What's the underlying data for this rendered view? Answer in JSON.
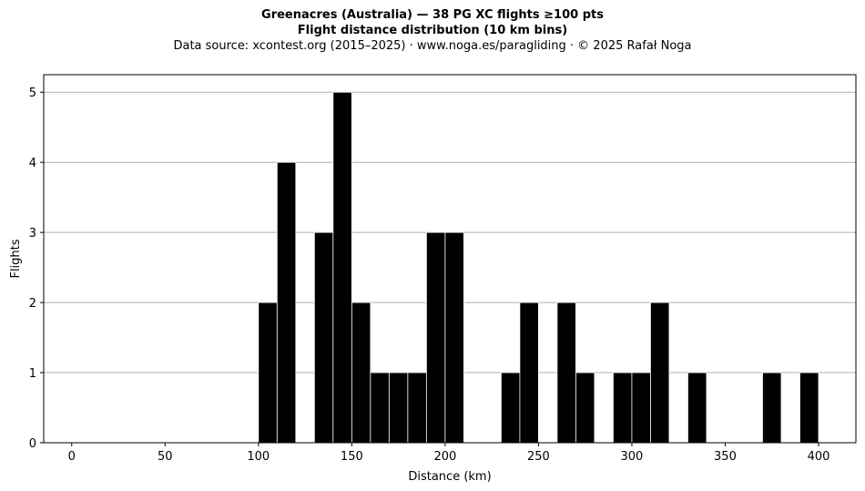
{
  "header": {
    "title": "Greenacres (Australia)  —  38 PG XC flights ≥100 pts",
    "subtitle": "Flight distance distribution (10 km bins)",
    "source": "Data source: xcontest.org (2015–2025)  ·  www.noga.es/paragliding  ·  © 2025 Rafał Noga"
  },
  "chart_data": {
    "type": "bar",
    "title": "Greenacres (Australia)  —  38 PG XC flights ≥100 pts",
    "subtitle": "Flight distance distribution (10 km bins)",
    "xlabel": "Distance (km)",
    "ylabel": "Flights",
    "xlim": [
      -15,
      420
    ],
    "ylim": [
      0,
      5.25
    ],
    "xticks": [
      0,
      50,
      100,
      150,
      200,
      250,
      300,
      350,
      400
    ],
    "yticks": [
      0,
      1,
      2,
      3,
      4,
      5
    ],
    "grid": "horizontal",
    "bin_width": 10,
    "bins": [
      {
        "start": 100,
        "count": 2
      },
      {
        "start": 110,
        "count": 4
      },
      {
        "start": 130,
        "count": 3
      },
      {
        "start": 140,
        "count": 5
      },
      {
        "start": 150,
        "count": 2
      },
      {
        "start": 160,
        "count": 1
      },
      {
        "start": 170,
        "count": 1
      },
      {
        "start": 180,
        "count": 1
      },
      {
        "start": 190,
        "count": 3
      },
      {
        "start": 200,
        "count": 3
      },
      {
        "start": 230,
        "count": 1
      },
      {
        "start": 240,
        "count": 2
      },
      {
        "start": 260,
        "count": 2
      },
      {
        "start": 270,
        "count": 1
      },
      {
        "start": 290,
        "count": 1
      },
      {
        "start": 300,
        "count": 1
      },
      {
        "start": 310,
        "count": 2
      },
      {
        "start": 330,
        "count": 1
      },
      {
        "start": 370,
        "count": 1
      },
      {
        "start": 390,
        "count": 1
      }
    ],
    "colors": {
      "bar": "#000000",
      "edge": "#ffffff",
      "grid": "#b0b0b0"
    }
  }
}
